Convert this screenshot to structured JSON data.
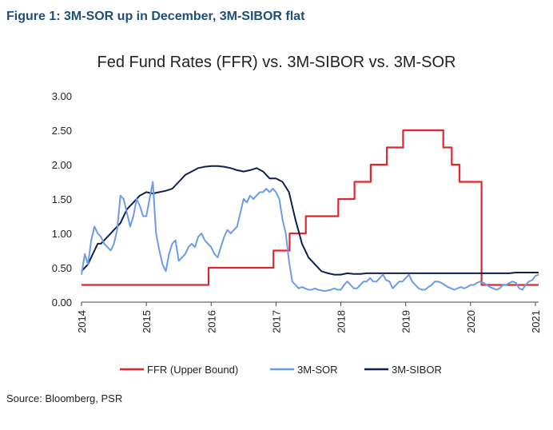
{
  "figure_heading": "Figure 1: 3M-SOR up in December, 3M-SIBOR flat",
  "source_note": "Source: Bloomberg, PSR",
  "chart_data": {
    "type": "line",
    "title": "Fed Fund Rates (FFR) vs. 3M-SIBOR vs. 3M-SOR",
    "xlabel": "",
    "ylabel": "",
    "xlim": [
      2014.0,
      2021.05
    ],
    "ylim": [
      0.0,
      3.0
    ],
    "y_ticks": [
      "0.00",
      "0.50",
      "1.00",
      "1.50",
      "2.00",
      "2.50",
      "3.00"
    ],
    "x_ticks": [
      "2014",
      "2015",
      "2016",
      "2017",
      "2018",
      "2019",
      "2020",
      "2021"
    ],
    "grid": false,
    "legend_position": "bottom",
    "series": [
      {
        "name": "FFR (Upper Bound)",
        "color": "#e3262e",
        "step": true,
        "x": [
          2014.0,
          2015.96,
          2016.96,
          2017.21,
          2017.46,
          2017.96,
          2018.21,
          2018.46,
          2018.71,
          2018.96,
          2019.58,
          2019.71,
          2019.83,
          2020.17,
          2021.05
        ],
        "y": [
          0.25,
          0.5,
          0.75,
          1.0,
          1.25,
          1.5,
          1.75,
          2.0,
          2.25,
          2.5,
          2.25,
          2.0,
          1.75,
          0.25,
          0.25
        ]
      },
      {
        "name": "3M-SOR",
        "color": "#6c9be8",
        "x": [
          2014.0,
          2014.05,
          2014.1,
          2014.15,
          2014.2,
          2014.25,
          2014.3,
          2014.35,
          2014.4,
          2014.45,
          2014.5,
          2014.55,
          2014.6,
          2014.65,
          2014.7,
          2014.75,
          2014.8,
          2014.85,
          2014.9,
          2014.95,
          2015.0,
          2015.05,
          2015.1,
          2015.15,
          2015.2,
          2015.25,
          2015.3,
          2015.35,
          2015.4,
          2015.45,
          2015.5,
          2015.55,
          2015.6,
          2015.65,
          2015.7,
          2015.75,
          2015.8,
          2015.85,
          2015.9,
          2015.95,
          2016.0,
          2016.05,
          2016.1,
          2016.15,
          2016.2,
          2016.25,
          2016.3,
          2016.35,
          2016.4,
          2016.45,
          2016.5,
          2016.55,
          2016.6,
          2016.65,
          2016.7,
          2016.75,
          2016.8,
          2016.85,
          2016.9,
          2016.95,
          2017.0,
          2017.05,
          2017.1,
          2017.15,
          2017.2,
          2017.25,
          2017.3,
          2017.35,
          2017.4,
          2017.45,
          2017.5,
          2017.55,
          2017.6,
          2017.65,
          2017.7,
          2017.75,
          2017.8,
          2017.85,
          2017.9,
          2017.95,
          2018.0,
          2018.05,
          2018.1,
          2018.15,
          2018.2,
          2018.25,
          2018.3,
          2018.35,
          2018.4,
          2018.45,
          2018.5,
          2018.55,
          2018.6,
          2018.65,
          2018.7,
          2018.75,
          2018.8,
          2018.85,
          2018.9,
          2018.95,
          2019.0,
          2019.05,
          2019.1,
          2019.15,
          2019.2,
          2019.25,
          2019.3,
          2019.35,
          2019.4,
          2019.45,
          2019.5,
          2019.55,
          2019.6,
          2019.65,
          2019.7,
          2019.75,
          2019.8,
          2019.85,
          2019.9,
          2019.95,
          2020.0,
          2020.05,
          2020.1,
          2020.15,
          2020.2,
          2020.25,
          2020.3,
          2020.35,
          2020.4,
          2020.45,
          2020.5,
          2020.55,
          2020.6,
          2020.65,
          2020.7,
          2020.75,
          2020.8,
          2020.85,
          2020.9,
          2020.95,
          2021.0,
          2021.05
        ],
        "y": [
          0.4,
          0.7,
          0.55,
          0.9,
          1.1,
          1.0,
          0.95,
          0.85,
          0.8,
          0.75,
          0.85,
          1.05,
          1.55,
          1.5,
          1.3,
          1.1,
          1.25,
          1.5,
          1.4,
          1.25,
          1.25,
          1.5,
          1.75,
          1.0,
          0.75,
          0.55,
          0.45,
          0.7,
          0.85,
          0.9,
          0.6,
          0.65,
          0.7,
          0.8,
          0.85,
          0.8,
          0.95,
          1.0,
          0.9,
          0.85,
          0.8,
          0.7,
          0.65,
          0.8,
          0.95,
          1.05,
          1.0,
          1.05,
          1.1,
          1.3,
          1.5,
          1.45,
          1.55,
          1.5,
          1.55,
          1.6,
          1.6,
          1.65,
          1.6,
          1.65,
          1.6,
          1.5,
          1.2,
          1.0,
          0.6,
          0.3,
          0.25,
          0.2,
          0.22,
          0.2,
          0.18,
          0.18,
          0.2,
          0.18,
          0.17,
          0.16,
          0.17,
          0.18,
          0.2,
          0.18,
          0.18,
          0.25,
          0.3,
          0.25,
          0.2,
          0.2,
          0.25,
          0.3,
          0.3,
          0.35,
          0.3,
          0.3,
          0.35,
          0.4,
          0.32,
          0.3,
          0.2,
          0.25,
          0.3,
          0.3,
          0.35,
          0.4,
          0.3,
          0.25,
          0.2,
          0.18,
          0.18,
          0.22,
          0.25,
          0.3,
          0.3,
          0.28,
          0.25,
          0.22,
          0.2,
          0.18,
          0.2,
          0.22,
          0.2,
          0.22,
          0.25,
          0.25,
          0.28,
          0.3,
          0.28,
          0.25,
          0.22,
          0.2,
          0.18,
          0.2,
          0.25,
          0.25,
          0.28,
          0.3,
          0.28,
          0.2,
          0.18,
          0.25,
          0.3,
          0.32,
          0.38,
          0.4
        ]
      },
      {
        "name": "3M-SIBOR",
        "color": "#0f1f4f",
        "x": [
          2014.0,
          2014.1,
          2014.2,
          2014.25,
          2014.3,
          2014.4,
          2014.5,
          2014.6,
          2014.7,
          2014.8,
          2014.9,
          2015.0,
          2015.1,
          2015.2,
          2015.3,
          2015.4,
          2015.5,
          2015.6,
          2015.7,
          2015.8,
          2015.9,
          2016.0,
          2016.1,
          2016.2,
          2016.3,
          2016.4,
          2016.5,
          2016.6,
          2016.7,
          2016.8,
          2016.9,
          2017.0,
          2017.1,
          2017.2,
          2017.3,
          2017.4,
          2017.5,
          2017.6,
          2017.7,
          2017.8,
          2017.9,
          2018.0,
          2018.1,
          2018.2,
          2018.3,
          2018.4,
          2018.5,
          2018.6,
          2018.7,
          2018.8,
          2018.9,
          2019.0,
          2019.1,
          2019.2,
          2019.3,
          2019.4,
          2019.5,
          2019.6,
          2019.7,
          2019.8,
          2019.9,
          2020.0,
          2020.1,
          2020.2,
          2020.3,
          2020.4,
          2020.5,
          2020.6,
          2020.7,
          2020.8,
          2020.9,
          2021.0,
          2021.05
        ],
        "y": [
          0.45,
          0.55,
          0.75,
          0.85,
          0.85,
          0.95,
          1.05,
          1.15,
          1.35,
          1.45,
          1.55,
          1.6,
          1.58,
          1.6,
          1.62,
          1.65,
          1.75,
          1.85,
          1.9,
          1.95,
          1.97,
          1.98,
          1.98,
          1.97,
          1.95,
          1.92,
          1.9,
          1.92,
          1.95,
          1.9,
          1.8,
          1.8,
          1.75,
          1.6,
          1.2,
          0.85,
          0.65,
          0.55,
          0.45,
          0.42,
          0.4,
          0.4,
          0.42,
          0.41,
          0.41,
          0.42,
          0.42,
          0.42,
          0.42,
          0.42,
          0.42,
          0.42,
          0.42,
          0.42,
          0.42,
          0.42,
          0.42,
          0.42,
          0.42,
          0.42,
          0.42,
          0.42,
          0.42,
          0.42,
          0.42,
          0.42,
          0.42,
          0.42,
          0.43,
          0.43,
          0.43,
          0.43,
          0.43
        ]
      }
    ]
  }
}
